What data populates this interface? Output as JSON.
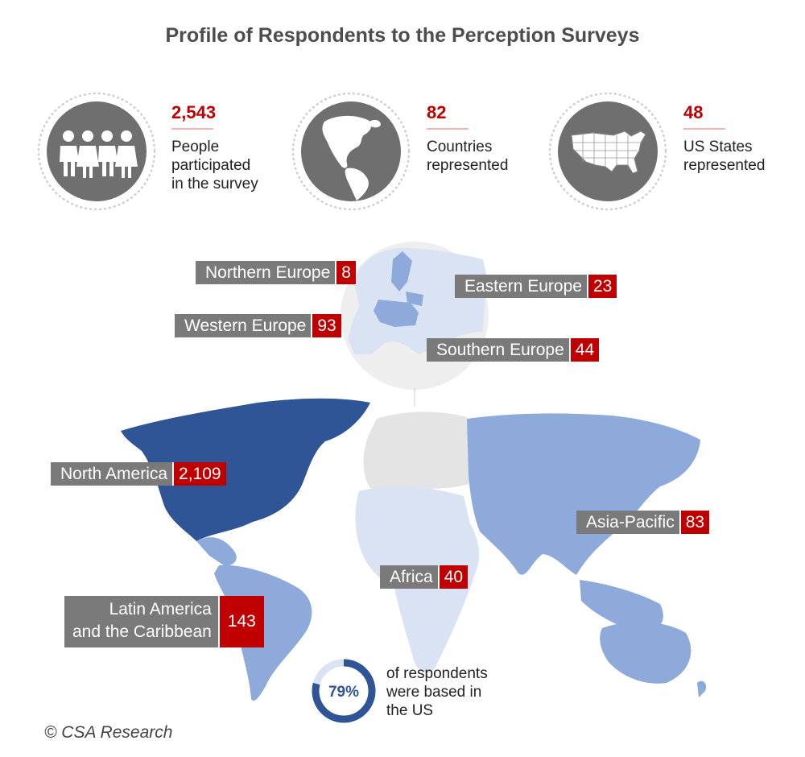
{
  "title": "Profile of Respondents to the Perception Surveys",
  "stats": [
    {
      "value": "2,543",
      "desc_lines": [
        "People",
        "participated",
        "in the survey"
      ],
      "icon": "people-icon"
    },
    {
      "value": "82",
      "desc_lines": [
        "Countries",
        "represented"
      ],
      "icon": "globe-americas-icon"
    },
    {
      "value": "48",
      "desc_lines": [
        "US States",
        "represented"
      ],
      "icon": "us-map-icon"
    }
  ],
  "regions": {
    "northern_europe": {
      "name": "Northern Europe",
      "value": "8"
    },
    "eastern_europe": {
      "name": "Eastern Europe",
      "value": "23"
    },
    "western_europe": {
      "name": "Western Europe",
      "value": "93"
    },
    "southern_europe": {
      "name": "Southern Europe",
      "value": "44"
    },
    "north_america": {
      "name": "North America",
      "value": "2,109"
    },
    "asia_pacific": {
      "name": "Asia-Pacific",
      "value": "83"
    },
    "africa": {
      "name": "Africa",
      "value": "40"
    },
    "latin_america": {
      "name_lines": [
        "Latin America",
        "and the Caribbean"
      ],
      "value": "143"
    }
  },
  "us_share": {
    "percent_label": "79%",
    "fraction": 0.79,
    "text_lines": [
      "of respondents",
      "were based in",
      "the US"
    ]
  },
  "credit": "© CSA Research",
  "colors": {
    "accent_red": "#c00000",
    "label_gray": "#7a7a7a",
    "icon_gray": "#6f6f6f",
    "dark_blue": "#2f5597",
    "mid_blue": "#8eaadb",
    "light_blue": "#dae3f3",
    "land_gray": "#e4e4e4"
  }
}
